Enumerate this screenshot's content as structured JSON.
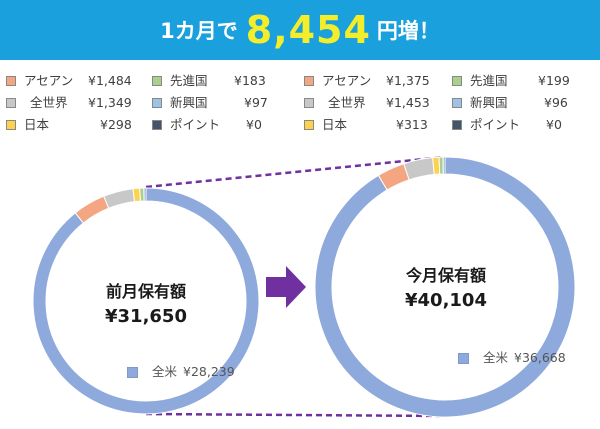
{
  "header": {
    "prefix": "1カ月で",
    "amount": "8,454",
    "suffix": "円増！",
    "bg_color": "#1aa0dc",
    "amount_color": "#f4ee2a"
  },
  "before": {
    "total_label": "前月保有額",
    "total_value": "¥31,650",
    "main_label": "全米",
    "main_value": "¥28,239",
    "legend": [
      {
        "name": "アセアン",
        "value": "¥1,484",
        "color": "#f4a582"
      },
      {
        "name": "全世界",
        "value": "¥1,349",
        "color": "#c8c8c8"
      },
      {
        "name": "日本",
        "value": "¥298",
        "color": "#ffd24d"
      },
      {
        "name": "先進国",
        "value": "¥183",
        "color": "#a9d18e"
      },
      {
        "name": "新興国",
        "value": "¥97",
        "color": "#9dc3e6"
      },
      {
        "name": "ポイント",
        "value": "¥0",
        "color": "#44546a"
      }
    ]
  },
  "after": {
    "total_label": "今月保有額",
    "total_value": "¥40,104",
    "main_label": "全米",
    "main_value": "¥36,668",
    "legend": [
      {
        "name": "アセアン",
        "value": "¥1,375",
        "color": "#f4a582"
      },
      {
        "name": "全世界",
        "value": "¥1,453",
        "color": "#c8c8c8"
      },
      {
        "name": "日本",
        "value": "¥313",
        "color": "#ffd24d"
      },
      {
        "name": "先進国",
        "value": "¥199",
        "color": "#a9d18e"
      },
      {
        "name": "新興国",
        "value": "¥96",
        "color": "#9dc3e6"
      },
      {
        "name": "ポイント",
        "value": "¥0",
        "color": "#44546a"
      }
    ]
  },
  "chart_data": [
    {
      "type": "pie",
      "title": "前月保有額 ¥31,650",
      "categories": [
        "全米",
        "アセアン",
        "全世界",
        "日本",
        "先進国",
        "新興国",
        "ポイント"
      ],
      "values": [
        28239,
        1484,
        1349,
        298,
        183,
        97,
        0
      ],
      "colors": [
        "#8ea9db",
        "#f4a582",
        "#c8c8c8",
        "#ffd24d",
        "#a9d18e",
        "#9dc3e6",
        "#44546a"
      ]
    },
    {
      "type": "pie",
      "title": "今月保有額 ¥40,104",
      "categories": [
        "全米",
        "アセアン",
        "全世界",
        "日本",
        "先進国",
        "新興国",
        "ポイント"
      ],
      "values": [
        36668,
        1375,
        1453,
        313,
        199,
        96,
        0
      ],
      "colors": [
        "#8ea9db",
        "#f4a582",
        "#c8c8c8",
        "#ffd24d",
        "#a9d18e",
        "#9dc3e6",
        "#44546a"
      ]
    }
  ],
  "arrow_color": "#7030a0"
}
